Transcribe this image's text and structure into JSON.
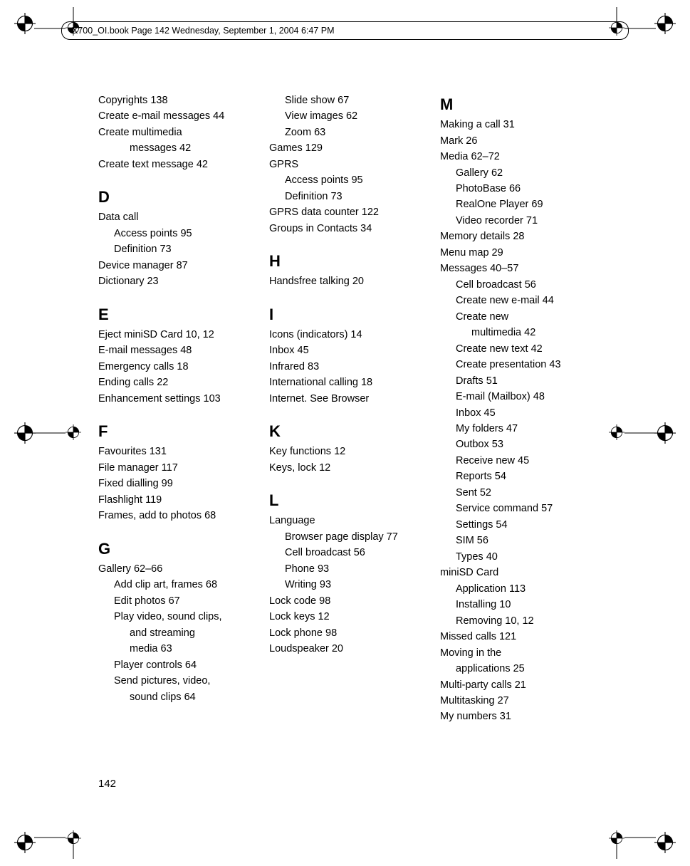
{
  "header": {
    "text": "X700_OI.book  Page 142  Wednesday, September 1, 2004  6:47 PM"
  },
  "page_number": "142",
  "registration_mark": {
    "stroke": "#000000",
    "fill": "#000000"
  },
  "columns": [
    {
      "blocks": [
        {
          "type": "entry",
          "lines": [
            {
              "t": "Copyrights 138",
              "cls": "entry"
            },
            {
              "t": "Create e-mail messages 44",
              "cls": "entry"
            },
            {
              "t": "Create multimedia",
              "cls": "entry"
            },
            {
              "t": "messages 42",
              "cls": "sub2"
            },
            {
              "t": "Create text message 42",
              "cls": "entry"
            }
          ]
        },
        {
          "type": "letter",
          "text": "D"
        },
        {
          "type": "entry",
          "lines": [
            {
              "t": "Data call",
              "cls": "entry"
            },
            {
              "t": "Access points 95",
              "cls": "sub1"
            },
            {
              "t": "Definition 73",
              "cls": "sub1"
            },
            {
              "t": "Device manager 87",
              "cls": "entry"
            },
            {
              "t": "Dictionary 23",
              "cls": "entry"
            }
          ]
        },
        {
          "type": "letter",
          "text": "E"
        },
        {
          "type": "entry",
          "lines": [
            {
              "t": "Eject miniSD Card 10, 12",
              "cls": "entry"
            },
            {
              "t": "E-mail messages 48",
              "cls": "entry"
            },
            {
              "t": "Emergency calls 18",
              "cls": "entry"
            },
            {
              "t": "Ending calls 22",
              "cls": "entry"
            },
            {
              "t": "Enhancement settings 103",
              "cls": "entry"
            }
          ]
        },
        {
          "type": "letter",
          "text": "F"
        },
        {
          "type": "entry",
          "lines": [
            {
              "t": "Favourites 131",
              "cls": "entry"
            },
            {
              "t": "File manager 117",
              "cls": "entry"
            },
            {
              "t": "Fixed dialling 99",
              "cls": "entry"
            },
            {
              "t": "Flashlight 119",
              "cls": "entry"
            },
            {
              "t": "Frames, add to photos 68",
              "cls": "entry"
            }
          ]
        },
        {
          "type": "letter",
          "text": "G"
        },
        {
          "type": "entry",
          "lines": [
            {
              "t": "Gallery 62–66",
              "cls": "entry"
            },
            {
              "t": "Add clip art, frames 68",
              "cls": "sub1"
            },
            {
              "t": "Edit photos 67",
              "cls": "sub1"
            },
            {
              "t": "Play video, sound clips,",
              "cls": "sub1"
            },
            {
              "t": "and streaming",
              "cls": "sub2"
            },
            {
              "t": "media 63",
              "cls": "sub2"
            },
            {
              "t": "Player controls 64",
              "cls": "sub1"
            },
            {
              "t": "Send pictures, video,",
              "cls": "sub1"
            },
            {
              "t": "sound clips 64",
              "cls": "sub2"
            }
          ]
        }
      ]
    },
    {
      "blocks": [
        {
          "type": "entry",
          "lines": [
            {
              "t": "Slide show 67",
              "cls": "sub1"
            },
            {
              "t": "View images 62",
              "cls": "sub1"
            },
            {
              "t": "Zoom 63",
              "cls": "sub1"
            },
            {
              "t": "Games 129",
              "cls": "entry"
            },
            {
              "t": "GPRS",
              "cls": "entry"
            },
            {
              "t": "Access points 95",
              "cls": "sub1"
            },
            {
              "t": "Definition 73",
              "cls": "sub1"
            },
            {
              "t": "GPRS data counter 122",
              "cls": "entry"
            },
            {
              "t": "Groups in Contacts 34",
              "cls": "entry"
            }
          ]
        },
        {
          "type": "letter",
          "text": "H"
        },
        {
          "type": "entry",
          "lines": [
            {
              "t": "Handsfree talking 20",
              "cls": "entry"
            }
          ]
        },
        {
          "type": "letter",
          "text": "I"
        },
        {
          "type": "entry",
          "lines": [
            {
              "t": "Icons (indicators) 14",
              "cls": "entry"
            },
            {
              "t": "Inbox 45",
              "cls": "entry"
            },
            {
              "t": "Infrared 83",
              "cls": "entry"
            },
            {
              "t": "International calling 18",
              "cls": "entry"
            },
            {
              "t": "Internet. See Browser",
              "cls": "entry"
            }
          ]
        },
        {
          "type": "letter",
          "text": "K"
        },
        {
          "type": "entry",
          "lines": [
            {
              "t": "Key functions 12",
              "cls": "entry"
            },
            {
              "t": "Keys, lock 12",
              "cls": "entry"
            }
          ]
        },
        {
          "type": "letter",
          "text": "L"
        },
        {
          "type": "entry",
          "lines": [
            {
              "t": "Language",
              "cls": "entry"
            },
            {
              "t": "Browser page display 77",
              "cls": "sub1"
            },
            {
              "t": "Cell broadcast 56",
              "cls": "sub1"
            },
            {
              "t": "Phone 93",
              "cls": "sub1"
            },
            {
              "t": "Writing 93",
              "cls": "sub1"
            },
            {
              "t": "Lock code 98",
              "cls": "entry"
            },
            {
              "t": "Lock keys 12",
              "cls": "entry"
            },
            {
              "t": "Lock phone 98",
              "cls": "entry"
            },
            {
              "t": "Loudspeaker 20",
              "cls": "entry"
            }
          ]
        }
      ]
    },
    {
      "blocks": [
        {
          "type": "letter",
          "text": "M",
          "first": true
        },
        {
          "type": "entry",
          "lines": [
            {
              "t": "Making a call 31",
              "cls": "entry"
            },
            {
              "t": "Mark 26",
              "cls": "entry"
            },
            {
              "t": "Media 62–72",
              "cls": "entry"
            },
            {
              "t": "Gallery 62",
              "cls": "sub1"
            },
            {
              "t": "PhotoBase 66",
              "cls": "sub1"
            },
            {
              "t": "RealOne Player 69",
              "cls": "sub1"
            },
            {
              "t": "Video recorder 71",
              "cls": "sub1"
            },
            {
              "t": "Memory details 28",
              "cls": "entry"
            },
            {
              "t": "Menu map 29",
              "cls": "entry"
            },
            {
              "t": "Messages 40–57",
              "cls": "entry"
            },
            {
              "t": "Cell broadcast 56",
              "cls": "sub1"
            },
            {
              "t": "Create new e-mail 44",
              "cls": "sub1"
            },
            {
              "t": "Create new",
              "cls": "sub1"
            },
            {
              "t": "multimedia 42",
              "cls": "sub2"
            },
            {
              "t": "Create new text 42",
              "cls": "sub1"
            },
            {
              "t": "Create presentation 43",
              "cls": "sub1"
            },
            {
              "t": "Drafts 51",
              "cls": "sub1"
            },
            {
              "t": "E-mail (Mailbox) 48",
              "cls": "sub1"
            },
            {
              "t": "Inbox 45",
              "cls": "sub1"
            },
            {
              "t": "My folders 47",
              "cls": "sub1"
            },
            {
              "t": "Outbox 53",
              "cls": "sub1"
            },
            {
              "t": "Receive new 45",
              "cls": "sub1"
            },
            {
              "t": "Reports 54",
              "cls": "sub1"
            },
            {
              "t": "Sent 52",
              "cls": "sub1"
            },
            {
              "t": "Service command 57",
              "cls": "sub1"
            },
            {
              "t": "Settings 54",
              "cls": "sub1"
            },
            {
              "t": "SIM 56",
              "cls": "sub1"
            },
            {
              "t": "Types 40",
              "cls": "sub1"
            },
            {
              "t": "miniSD Card",
              "cls": "entry"
            },
            {
              "t": "Application 113",
              "cls": "sub1"
            },
            {
              "t": "Installing 10",
              "cls": "sub1"
            },
            {
              "t": "Removing 10, 12",
              "cls": "sub1"
            },
            {
              "t": "Missed calls 121",
              "cls": "entry"
            },
            {
              "t": "Moving in the",
              "cls": "entry"
            },
            {
              "t": "applications 25",
              "cls": "sub1"
            },
            {
              "t": "Multi-party calls 21",
              "cls": "entry"
            },
            {
              "t": "Multitasking 27",
              "cls": "entry"
            },
            {
              "t": "My numbers 31",
              "cls": "entry"
            }
          ]
        }
      ]
    }
  ]
}
